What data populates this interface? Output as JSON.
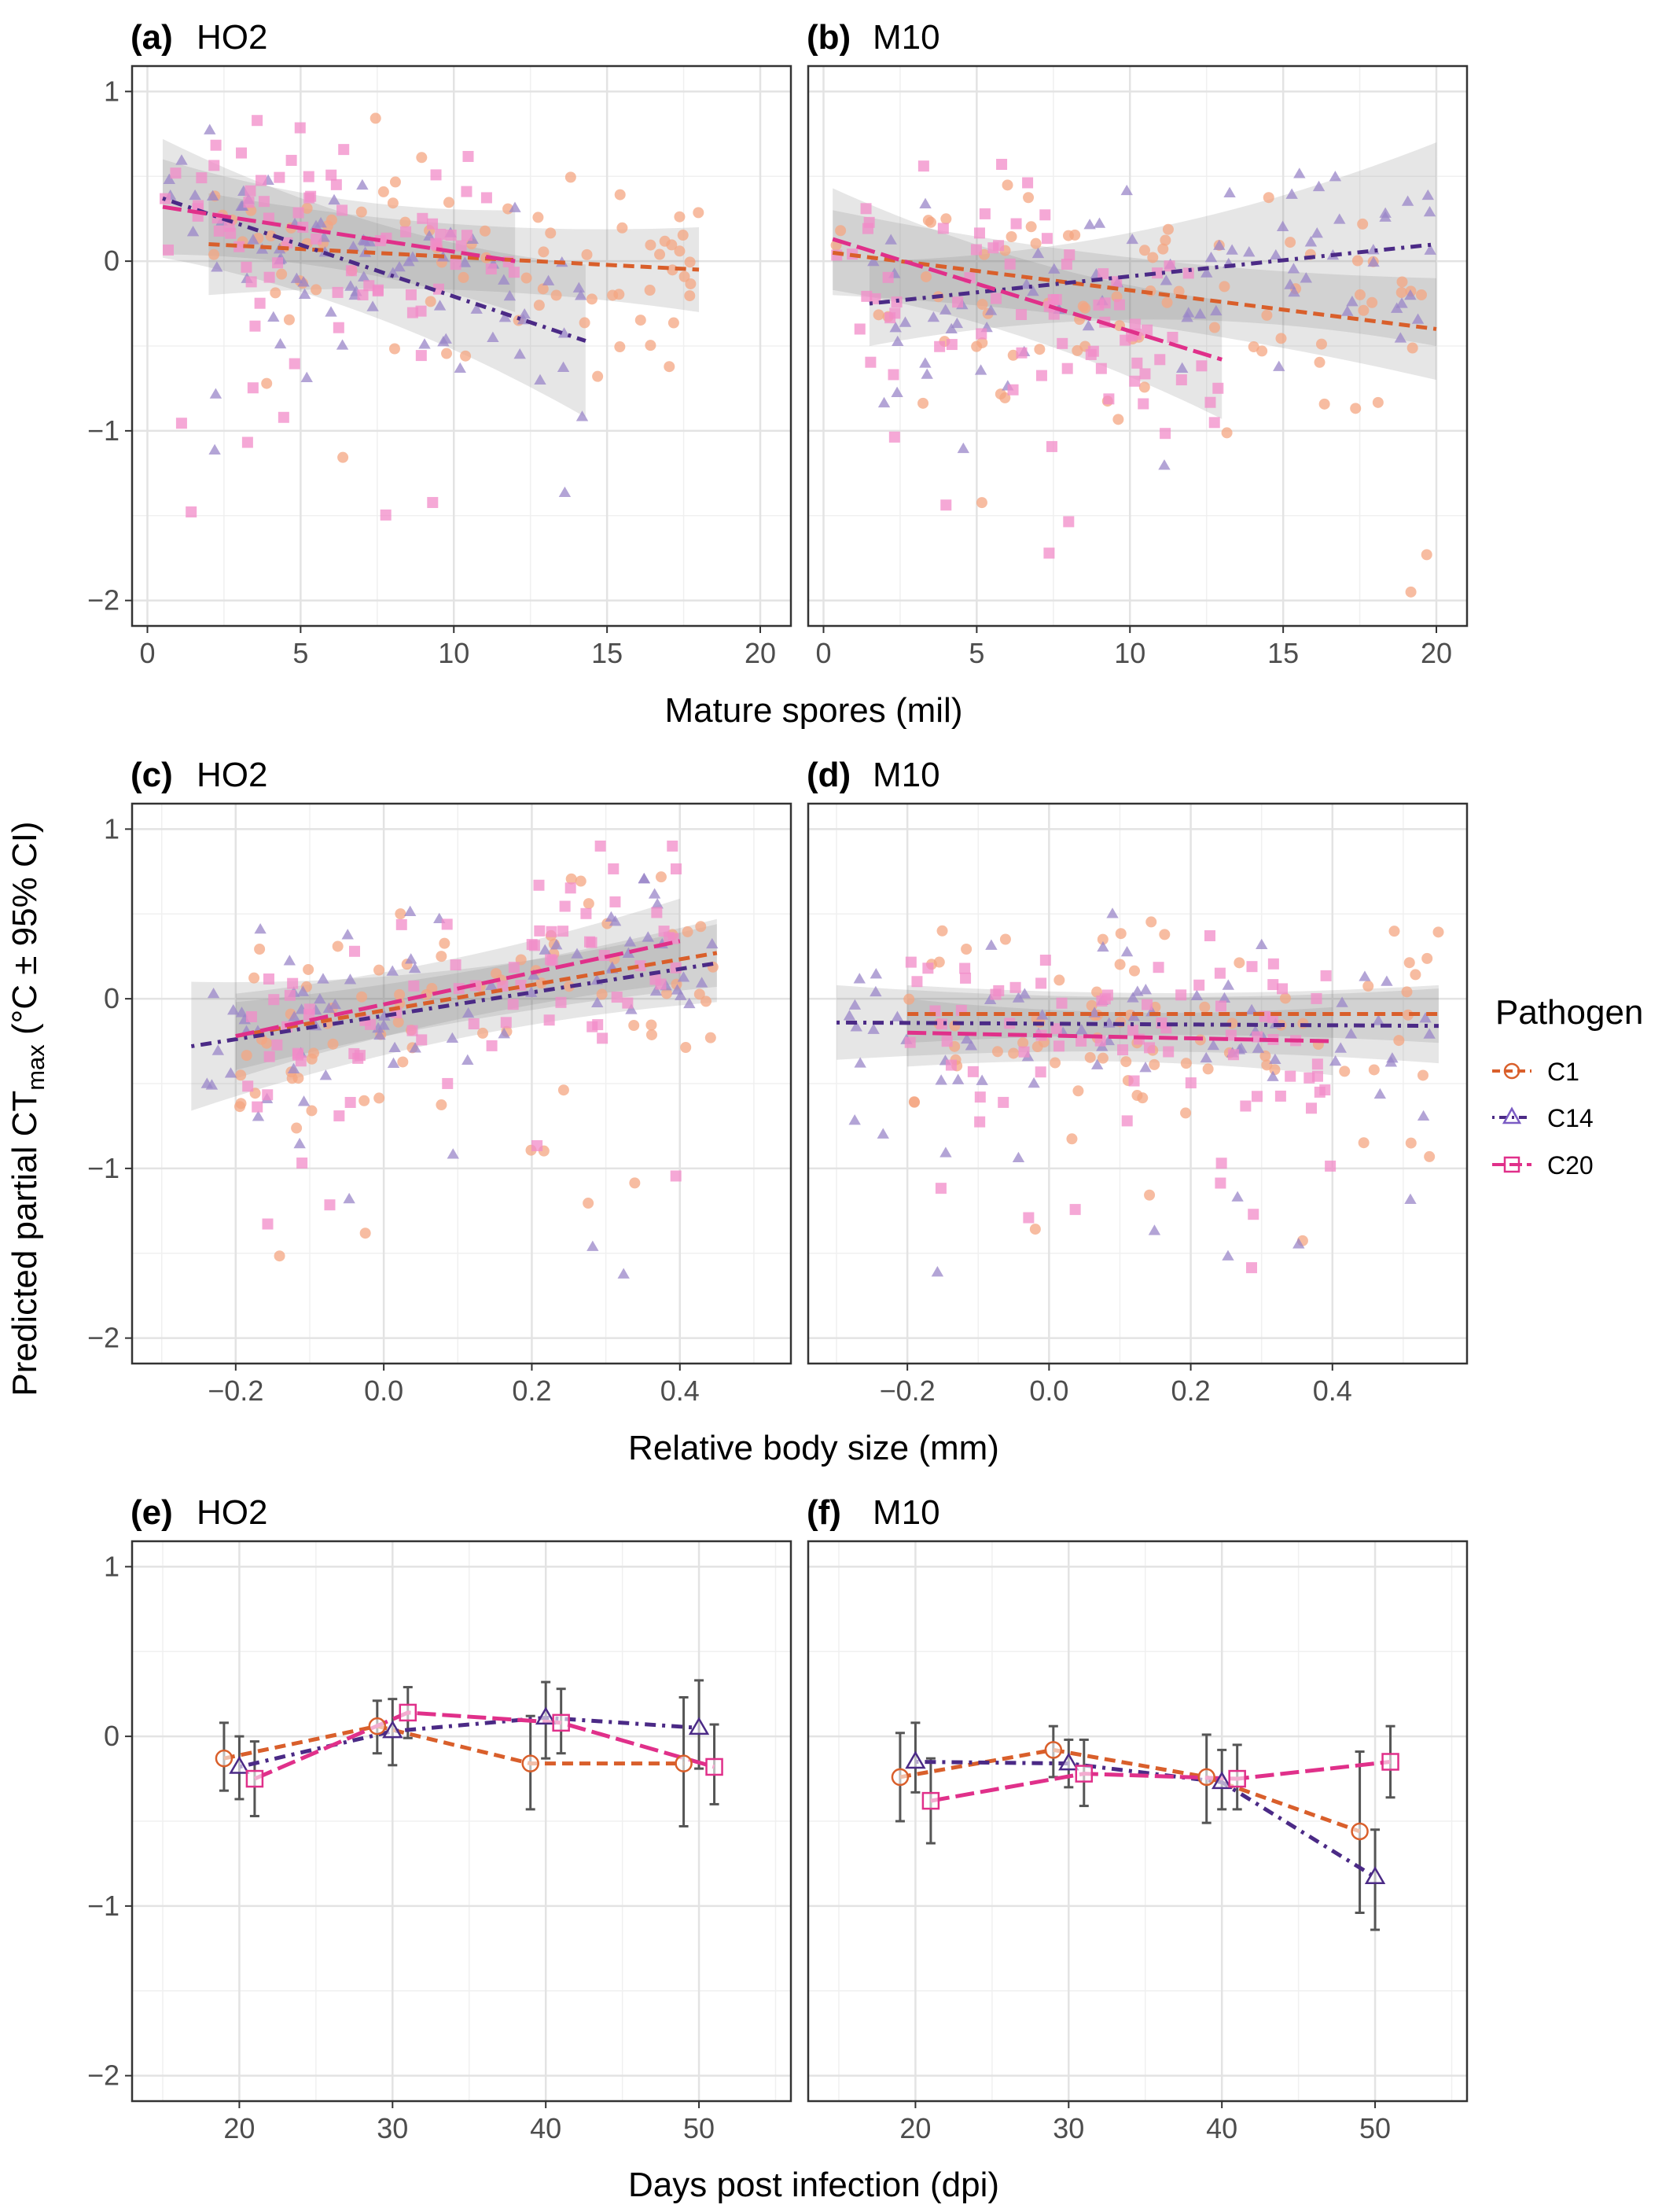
{
  "ylabel": "Predicted partial CT",
  "ylabel_sub": "max",
  "ylabel_suffix": " (°C ± 95% CI)",
  "legend": {
    "title": "Pathogen",
    "entries": [
      {
        "label": "C1",
        "color": "#D95F2B",
        "marker": "circle",
        "dash": "dashed"
      },
      {
        "label": "C14",
        "color": "#4B2A86",
        "marker": "triangle",
        "dash": "dotdash"
      },
      {
        "label": "C20",
        "color": "#E0308A",
        "marker": "square",
        "dash": "longdash"
      }
    ]
  },
  "rows": [
    {
      "xlabel": "Mature spores (mil)"
    },
    {
      "xlabel": "Relative body size (mm)"
    },
    {
      "xlabel": "Days post infection (dpi)"
    }
  ],
  "panels": [
    {
      "tag": "(a)",
      "site": "HO2"
    },
    {
      "tag": "(b)",
      "site": "M10"
    },
    {
      "tag": "(c)",
      "site": "HO2"
    },
    {
      "tag": "(d)",
      "site": "M10"
    },
    {
      "tag": "(e)",
      "site": "HO2"
    },
    {
      "tag": "(f)",
      "site": "M10"
    }
  ],
  "chart_data": [
    {
      "panel": "(a) HO2",
      "type": "scatter",
      "xlabel": "Mature spores (mil)",
      "xlim": [
        -0.5,
        21
      ],
      "ylim": [
        -2.15,
        1.15
      ],
      "xticks": [
        0,
        5,
        10,
        15,
        20
      ],
      "xtick_labels": [
        "0",
        "5",
        "10",
        "15",
        "20"
      ],
      "yticks": [
        -2,
        -1,
        0,
        1
      ],
      "ytick_labels": [
        "−2",
        "−1",
        "0",
        "1"
      ],
      "grid": true,
      "series": [
        {
          "name": "C1",
          "fit": {
            "x": [
              2,
              18
            ],
            "y": [
              0.1,
              -0.05
            ]
          },
          "ci": [
            0.3,
            0.25
          ]
        },
        {
          "name": "C14",
          "fit": {
            "x": [
              0.5,
              14.3
            ],
            "y": [
              0.37,
              -0.47
            ]
          },
          "ci": [
            0.35,
            0.45
          ]
        },
        {
          "name": "C20",
          "fit": {
            "x": [
              0.5,
              12
            ],
            "y": [
              0.32,
              0.0
            ]
          },
          "ci": [
            0.28,
            0.3
          ]
        }
      ]
    },
    {
      "panel": "(b) M10",
      "type": "scatter",
      "xlabel": "Mature spores (mil)",
      "xlim": [
        -0.5,
        21
      ],
      "ylim": [
        -2.15,
        1.15
      ],
      "xticks": [
        0,
        5,
        10,
        15,
        20
      ],
      "xtick_labels": [
        "0",
        "5",
        "10",
        "15",
        "20"
      ],
      "yticks": [
        -2,
        -1,
        0,
        1
      ],
      "ytick_labels": [
        "−2",
        "−1",
        "0",
        "1"
      ],
      "grid": true,
      "series": [
        {
          "name": "C1",
          "fit": {
            "x": [
              0.3,
              20
            ],
            "y": [
              0.05,
              -0.4
            ]
          },
          "ci": [
            0.25,
            0.3
          ]
        },
        {
          "name": "C14",
          "fit": {
            "x": [
              1.5,
              20
            ],
            "y": [
              -0.25,
              0.1
            ]
          },
          "ci": [
            0.25,
            0.6
          ]
        },
        {
          "name": "C20",
          "fit": {
            "x": [
              0.3,
              13
            ],
            "y": [
              0.13,
              -0.58
            ]
          },
          "ci": [
            0.3,
            0.35
          ]
        }
      ]
    },
    {
      "panel": "(c) HO2",
      "type": "scatter",
      "xlabel": "Relative body size (mm)",
      "xlim": [
        -0.34,
        0.55
      ],
      "ylim": [
        -2.15,
        1.15
      ],
      "xticks": [
        -0.2,
        0.0,
        0.2,
        0.4
      ],
      "xtick_labels": [
        "−0.2",
        "0.0",
        "0.2",
        "0.4"
      ],
      "yticks": [
        -2,
        -1,
        0,
        1
      ],
      "ytick_labels": [
        "−2",
        "−1",
        "0",
        "1"
      ],
      "grid": true,
      "series": [
        {
          "name": "C1",
          "fit": {
            "x": [
              -0.2,
              0.45
            ],
            "y": [
              -0.22,
              0.27
            ]
          },
          "ci": [
            0.2,
            0.2
          ]
        },
        {
          "name": "C14",
          "fit": {
            "x": [
              -0.26,
              0.45
            ],
            "y": [
              -0.28,
              0.21
            ]
          },
          "ci": [
            0.38,
            0.23
          ]
        },
        {
          "name": "C20",
          "fit": {
            "x": [
              -0.2,
              0.4
            ],
            "y": [
              -0.22,
              0.34
            ]
          },
          "ci": [
            0.25,
            0.25
          ]
        }
      ]
    },
    {
      "panel": "(d) M10",
      "type": "scatter",
      "xlabel": "Relative body size (mm)",
      "xlim": [
        -0.34,
        0.59
      ],
      "ylim": [
        -2.15,
        1.15
      ],
      "xticks": [
        -0.2,
        0.0,
        0.2,
        0.4
      ],
      "xtick_labels": [
        "−0.2",
        "0.0",
        "0.2",
        "0.4"
      ],
      "yticks": [
        -2,
        -1,
        0,
        1
      ],
      "ytick_labels": [
        "−2",
        "−1",
        "0",
        "1"
      ],
      "grid": true,
      "series": [
        {
          "name": "C1",
          "fit": {
            "x": [
              -0.2,
              0.55
            ],
            "y": [
              -0.09,
              -0.09
            ]
          },
          "ci": [
            0.17,
            0.17
          ]
        },
        {
          "name": "C14",
          "fit": {
            "x": [
              -0.3,
              0.55
            ],
            "y": [
              -0.14,
              -0.16
            ]
          },
          "ci": [
            0.22,
            0.22
          ]
        },
        {
          "name": "C20",
          "fit": {
            "x": [
              -0.2,
              0.4
            ],
            "y": [
              -0.2,
              -0.25
            ]
          },
          "ci": [
            0.2,
            0.2
          ]
        }
      ]
    },
    {
      "panel": "(e) HO2",
      "type": "line",
      "xlabel": "Days post infection (dpi)",
      "xlim": [
        13,
        56
      ],
      "ylim": [
        -2.15,
        1.15
      ],
      "xticks": [
        20,
        30,
        40,
        50
      ],
      "xtick_labels": [
        "20",
        "30",
        "40",
        "50"
      ],
      "yticks": [
        -2,
        -1,
        0,
        1
      ],
      "ytick_labels": [
        "−2",
        "−1",
        "0",
        "1"
      ],
      "grid": true,
      "series": [
        {
          "name": "C1",
          "x": [
            19,
            29,
            39,
            49
          ],
          "y": [
            -0.13,
            0.06,
            -0.16,
            -0.16
          ],
          "lo": [
            -0.32,
            -0.1,
            -0.43,
            -0.53
          ],
          "hi": [
            0.08,
            0.21,
            0.12,
            0.23
          ]
        },
        {
          "name": "C14",
          "x": [
            20,
            30,
            40,
            50
          ],
          "y": [
            -0.18,
            0.03,
            0.11,
            0.05
          ],
          "lo": [
            -0.37,
            -0.17,
            -0.13,
            -0.19
          ],
          "hi": [
            0.0,
            0.22,
            0.32,
            0.33
          ]
        },
        {
          "name": "C20",
          "x": [
            21,
            31,
            41,
            51
          ],
          "y": [
            -0.25,
            0.14,
            0.08,
            -0.18
          ],
          "lo": [
            -0.47,
            -0.01,
            -0.1,
            -0.4
          ],
          "hi": [
            -0.03,
            0.29,
            0.28,
            0.07
          ]
        }
      ]
    },
    {
      "panel": "(f) M10",
      "type": "line",
      "xlabel": "Days post infection (dpi)",
      "xlim": [
        13,
        56
      ],
      "ylim": [
        -2.15,
        1.15
      ],
      "xticks": [
        20,
        30,
        40,
        50
      ],
      "xtick_labels": [
        "20",
        "30",
        "40",
        "50"
      ],
      "yticks": [
        -2,
        -1,
        0,
        1
      ],
      "ytick_labels": [
        "−2",
        "−1",
        "0",
        "1"
      ],
      "grid": true,
      "series": [
        {
          "name": "C1",
          "x": [
            19,
            29,
            39,
            49
          ],
          "y": [
            -0.24,
            -0.08,
            -0.24,
            -0.56
          ],
          "lo": [
            -0.5,
            -0.24,
            -0.51,
            -1.04
          ],
          "hi": [
            0.02,
            0.06,
            0.01,
            -0.09
          ]
        },
        {
          "name": "C14",
          "x": [
            20,
            30,
            40,
            50
          ],
          "y": [
            -0.15,
            -0.16,
            -0.27,
            -0.83
          ],
          "lo": [
            -0.33,
            -0.3,
            -0.43,
            -1.14
          ],
          "hi": [
            0.08,
            -0.02,
            -0.08,
            -0.55
          ]
        },
        {
          "name": "C20",
          "x": [
            21,
            31,
            41,
            51
          ],
          "y": [
            -0.38,
            -0.22,
            -0.25,
            -0.15
          ],
          "lo": [
            -0.63,
            -0.41,
            -0.43,
            -0.36
          ],
          "hi": [
            -0.13,
            -0.02,
            -0.05,
            0.06
          ]
        }
      ]
    }
  ]
}
